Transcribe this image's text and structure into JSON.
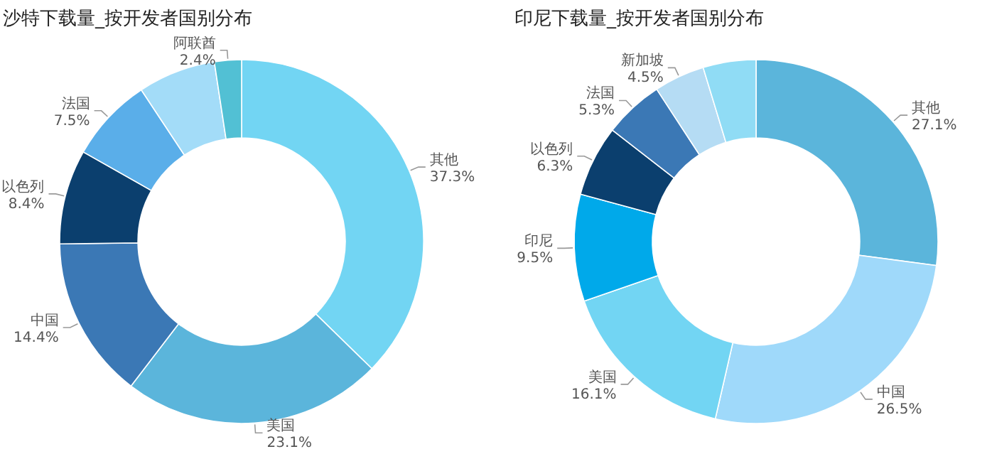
{
  "chart_data": [
    {
      "type": "donut",
      "title": "沙特下载量_按开发者国别分布",
      "categories": [
        "其他",
        "美国",
        "中国",
        "以色列",
        "法国",
        null,
        "阿联酋"
      ],
      "values": [
        37.3,
        23.1,
        14.4,
        8.4,
        7.5,
        6.9,
        2.4
      ],
      "value_labels": [
        "37.3%",
        "23.1%",
        "14.4%",
        "8.4%",
        "7.5%",
        null,
        "2.4%"
      ],
      "colors": [
        "#72d5f3",
        "#5bb5db",
        "#3b78b5",
        "#0b3f6e",
        "#5aaee9",
        "#a3dcf8",
        "#52c0d4"
      ]
    },
    {
      "type": "donut",
      "title": "印尼下载量_按开发者国别分布",
      "categories": [
        "其他",
        "中国",
        "美国",
        "印尼",
        "以色列",
        "法国",
        "新加坡",
        null
      ],
      "values": [
        27.1,
        26.5,
        16.1,
        9.5,
        6.3,
        5.3,
        4.5,
        4.7
      ],
      "value_labels": [
        "27.1%",
        "26.5%",
        "16.1%",
        "9.5%",
        "6.3%",
        "5.3%",
        "4.5%",
        null
      ],
      "colors": [
        "#5bb5db",
        "#9fd9fa",
        "#72d5f3",
        "#00a9ea",
        "#0b3f6e",
        "#3b78b5",
        "#b5dcf4",
        "#90dcf5"
      ]
    }
  ]
}
